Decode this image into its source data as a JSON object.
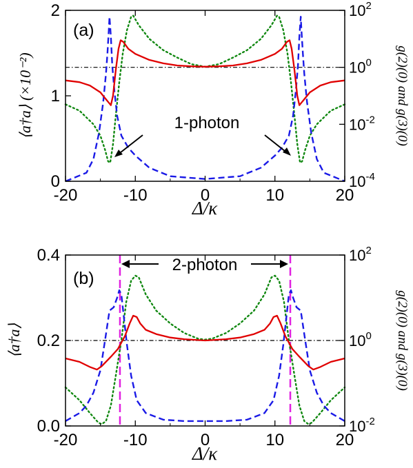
{
  "chart_data": [
    {
      "type": "line",
      "panel_label": "(a)",
      "xlabel": "Δ/κ",
      "ylabel_left": "⟨a†a⟩ (×10⁻²)",
      "ylabel_right": "g(2)(0) and g(3)(0)",
      "xlim": [
        -20,
        20
      ],
      "ylim_left": [
        0,
        2
      ],
      "ylim_right": [
        0.0001,
        100
      ],
      "right_axis_scale": "log",
      "x_ticks": [
        "-20",
        "-10",
        "0",
        "10",
        "20"
      ],
      "y_ticks_left": [
        "0",
        "1",
        "2"
      ],
      "y_ticks_right": [
        {
          "base": "10",
          "exp": "-4"
        },
        {
          "base": "10",
          "exp": "-2"
        },
        {
          "base": "10",
          "exp": "0"
        },
        {
          "base": "10",
          "exp": "2"
        }
      ],
      "annotation": "1-photon",
      "reference_line": {
        "style": "dash-dot",
        "color": "#000000",
        "right_axis_value": 1
      },
      "series": [
        {
          "axis": "left",
          "color": "#e00000",
          "style": "solid",
          "points": [
            [
              -20,
              1.18
            ],
            [
              -18,
              1.16
            ],
            [
              -16.5,
              1.12
            ],
            [
              -15,
              1.04
            ],
            [
              -14.2,
              0.96
            ],
            [
              -13.7,
              0.91
            ],
            [
              -13.5,
              0.89
            ],
            [
              -13.2,
              1.0
            ],
            [
              -12.8,
              1.3
            ],
            [
              -12.4,
              1.55
            ],
            [
              -12.1,
              1.65
            ],
            [
              -11.7,
              1.63
            ],
            [
              -11,
              1.55
            ],
            [
              -10,
              1.49
            ],
            [
              -8,
              1.42
            ],
            [
              -6,
              1.38
            ],
            [
              -4,
              1.355
            ],
            [
              -2,
              1.345
            ],
            [
              0,
              1.34
            ],
            [
              2,
              1.345
            ],
            [
              4,
              1.355
            ],
            [
              6,
              1.38
            ],
            [
              8,
              1.42
            ],
            [
              10,
              1.49
            ],
            [
              11,
              1.55
            ],
            [
              11.7,
              1.63
            ],
            [
              12.1,
              1.65
            ],
            [
              12.4,
              1.55
            ],
            [
              12.8,
              1.3
            ],
            [
              13.2,
              1.0
            ],
            [
              13.5,
              0.89
            ],
            [
              13.7,
              0.91
            ],
            [
              14.2,
              0.96
            ],
            [
              15,
              1.04
            ],
            [
              16.5,
              1.12
            ],
            [
              18,
              1.16
            ],
            [
              20,
              1.18
            ]
          ]
        },
        {
          "axis": "right",
          "color": "#1a1ae6",
          "style": "dashed",
          "points": [
            [
              -20,
              0.0001
            ],
            [
              -17,
              0.0002
            ],
            [
              -16,
              0.0006
            ],
            [
              -15.2,
              0.005
            ],
            [
              -14.6,
              0.06
            ],
            [
              -14.2,
              0.6
            ],
            [
              -14.0,
              3
            ],
            [
              -13.8,
              20
            ],
            [
              -13.7,
              60
            ],
            [
              -13.5,
              12
            ],
            [
              -13.3,
              1.2
            ],
            [
              -13,
              0.15
            ],
            [
              -12.6,
              0.02
            ],
            [
              -12,
              0.004
            ],
            [
              -11,
              0.0015
            ],
            [
              -10,
              0.0008
            ],
            [
              -8,
              0.0003
            ],
            [
              -5,
              0.00015
            ],
            [
              0,
              0.00012
            ],
            [
              5,
              0.00015
            ],
            [
              8,
              0.0003
            ],
            [
              10,
              0.0008
            ],
            [
              11,
              0.0015
            ],
            [
              12,
              0.004
            ],
            [
              12.6,
              0.02
            ],
            [
              13,
              0.15
            ],
            [
              13.3,
              1.2
            ],
            [
              13.5,
              12
            ],
            [
              13.7,
              60
            ],
            [
              13.8,
              20
            ],
            [
              14.0,
              3
            ],
            [
              14.2,
              0.6
            ],
            [
              14.6,
              0.06
            ],
            [
              15.2,
              0.005
            ],
            [
              16,
              0.0006
            ],
            [
              17,
              0.0002
            ],
            [
              20,
              0.0001
            ]
          ]
        },
        {
          "axis": "right",
          "color": "#118811",
          "style": "dotted",
          "points": [
            [
              -20,
              0.05
            ],
            [
              -18,
              0.03
            ],
            [
              -16,
              0.01
            ],
            [
              -15,
              0.004
            ],
            [
              -14.3,
              0.0012
            ],
            [
              -13.9,
              0.0005
            ],
            [
              -13.6,
              0.00045
            ],
            [
              -13.2,
              0.002
            ],
            [
              -12.8,
              0.02
            ],
            [
              -12.3,
              0.3
            ],
            [
              -11.8,
              3
            ],
            [
              -11.2,
              20
            ],
            [
              -10.6,
              60
            ],
            [
              -10.3,
              65
            ],
            [
              -9.5,
              30
            ],
            [
              -8,
              10
            ],
            [
              -6,
              4
            ],
            [
              -4,
              2.2
            ],
            [
              -2,
              1.3
            ],
            [
              0,
              1.05
            ],
            [
              2,
              1.3
            ],
            [
              4,
              2.2
            ],
            [
              6,
              4
            ],
            [
              8,
              10
            ],
            [
              9.5,
              30
            ],
            [
              10.3,
              65
            ],
            [
              10.6,
              60
            ],
            [
              11.2,
              20
            ],
            [
              11.8,
              3
            ],
            [
              12.3,
              0.3
            ],
            [
              12.8,
              0.02
            ],
            [
              13.2,
              0.002
            ],
            [
              13.6,
              0.00045
            ],
            [
              13.9,
              0.0005
            ],
            [
              14.3,
              0.0012
            ],
            [
              15,
              0.004
            ],
            [
              16,
              0.01
            ],
            [
              18,
              0.03
            ],
            [
              20,
              0.05
            ]
          ]
        }
      ]
    },
    {
      "type": "line",
      "panel_label": "(b)",
      "xlabel": "Δ/κ",
      "ylabel_left": "⟨a†a⟩",
      "ylabel_right": "g(2)(0) and g(3)(0)",
      "xlim": [
        -20,
        20
      ],
      "ylim_left": [
        0,
        0.4
      ],
      "ylim_right": [
        0.01,
        100
      ],
      "right_axis_scale": "log",
      "x_ticks": [
        "-20",
        "-10",
        "0",
        "10",
        "20"
      ],
      "y_ticks_left": [
        "0.0",
        "0.2",
        "0.4"
      ],
      "y_ticks_right": [
        {
          "base": "10",
          "exp": "-2"
        },
        {
          "base": "10",
          "exp": "0"
        },
        {
          "base": "10",
          "exp": "2"
        }
      ],
      "annotation": "2-photon",
      "vertical_markers": {
        "x": [
          -12.2,
          12.2
        ],
        "color": "#e020e0",
        "style": "dashed"
      },
      "reference_line": {
        "style": "dash-dot",
        "color": "#000000",
        "right_axis_value": 1
      },
      "series": [
        {
          "axis": "left",
          "color": "#e00000",
          "style": "solid",
          "points": [
            [
              -20,
              0.158
            ],
            [
              -18,
              0.15
            ],
            [
              -16.5,
              0.138
            ],
            [
              -15.5,
              0.132
            ],
            [
              -14.8,
              0.14
            ],
            [
              -13.5,
              0.162
            ],
            [
              -12.5,
              0.18
            ],
            [
              -11.5,
              0.21
            ],
            [
              -10.8,
              0.24
            ],
            [
              -10.3,
              0.258
            ],
            [
              -9.8,
              0.255
            ],
            [
              -9.3,
              0.24
            ],
            [
              -8.5,
              0.225
            ],
            [
              -7,
              0.215
            ],
            [
              -5,
              0.207
            ],
            [
              -3,
              0.203
            ],
            [
              0,
              0.2
            ],
            [
              3,
              0.203
            ],
            [
              5,
              0.207
            ],
            [
              7,
              0.215
            ],
            [
              8.5,
              0.225
            ],
            [
              9.3,
              0.24
            ],
            [
              9.8,
              0.255
            ],
            [
              10.3,
              0.258
            ],
            [
              10.8,
              0.24
            ],
            [
              11.5,
              0.21
            ],
            [
              12.5,
              0.18
            ],
            [
              13.5,
              0.162
            ],
            [
              14.8,
              0.14
            ],
            [
              15.5,
              0.132
            ],
            [
              16.5,
              0.138
            ],
            [
              18,
              0.15
            ],
            [
              20,
              0.158
            ]
          ]
        },
        {
          "axis": "right",
          "color": "#1a1ae6",
          "style": "dashed",
          "points": [
            [
              -20,
              0.013
            ],
            [
              -18,
              0.02
            ],
            [
              -17,
              0.03
            ],
            [
              -16,
              0.06
            ],
            [
              -15,
              0.2
            ],
            [
              -14.3,
              1.1
            ],
            [
              -13.7,
              5
            ],
            [
              -13.1,
              6
            ],
            [
              -12.6,
              10
            ],
            [
              -12.3,
              15
            ],
            [
              -12.0,
              12
            ],
            [
              -11.6,
              3
            ],
            [
              -11.2,
              0.8
            ],
            [
              -10.6,
              0.15
            ],
            [
              -9.8,
              0.04
            ],
            [
              -8.5,
              0.02
            ],
            [
              -6,
              0.014
            ],
            [
              -3,
              0.013
            ],
            [
              0,
              0.013
            ],
            [
              3,
              0.013
            ],
            [
              6,
              0.014
            ],
            [
              8.5,
              0.02
            ],
            [
              9.8,
              0.04
            ],
            [
              10.6,
              0.15
            ],
            [
              11.2,
              0.8
            ],
            [
              11.6,
              3
            ],
            [
              12.0,
              12
            ],
            [
              12.3,
              15
            ],
            [
              12.6,
              10
            ],
            [
              13.1,
              6
            ],
            [
              13.7,
              5
            ],
            [
              14.3,
              1.1
            ],
            [
              15,
              0.2
            ],
            [
              16,
              0.06
            ],
            [
              17,
              0.03
            ],
            [
              18,
              0.02
            ],
            [
              20,
              0.013
            ]
          ]
        },
        {
          "axis": "right",
          "color": "#118811",
          "style": "dotted",
          "points": [
            [
              -20,
              0.08
            ],
            [
              -18,
              0.04
            ],
            [
              -16.5,
              0.02
            ],
            [
              -15.3,
              0.012
            ],
            [
              -14.8,
              0.011
            ],
            [
              -14.2,
              0.013
            ],
            [
              -13.5,
              0.03
            ],
            [
              -12.8,
              0.15
            ],
            [
              -12,
              1
            ],
            [
              -11.3,
              8
            ],
            [
              -10.6,
              25
            ],
            [
              -10.0,
              33
            ],
            [
              -9.5,
              30
            ],
            [
              -8.5,
              12
            ],
            [
              -7,
              5
            ],
            [
              -5,
              2.5
            ],
            [
              -3,
              1.5
            ],
            [
              -1,
              1.1
            ],
            [
              0,
              1.05
            ],
            [
              1,
              1.1
            ],
            [
              3,
              1.5
            ],
            [
              5,
              2.5
            ],
            [
              7,
              5
            ],
            [
              8.5,
              12
            ],
            [
              9.5,
              30
            ],
            [
              10.0,
              33
            ],
            [
              10.6,
              25
            ],
            [
              11.3,
              8
            ],
            [
              12,
              1
            ],
            [
              12.8,
              0.15
            ],
            [
              13.5,
              0.03
            ],
            [
              14.2,
              0.013
            ],
            [
              14.8,
              0.011
            ],
            [
              15.3,
              0.012
            ],
            [
              16.5,
              0.02
            ],
            [
              18,
              0.04
            ],
            [
              20,
              0.08
            ]
          ]
        }
      ]
    }
  ]
}
